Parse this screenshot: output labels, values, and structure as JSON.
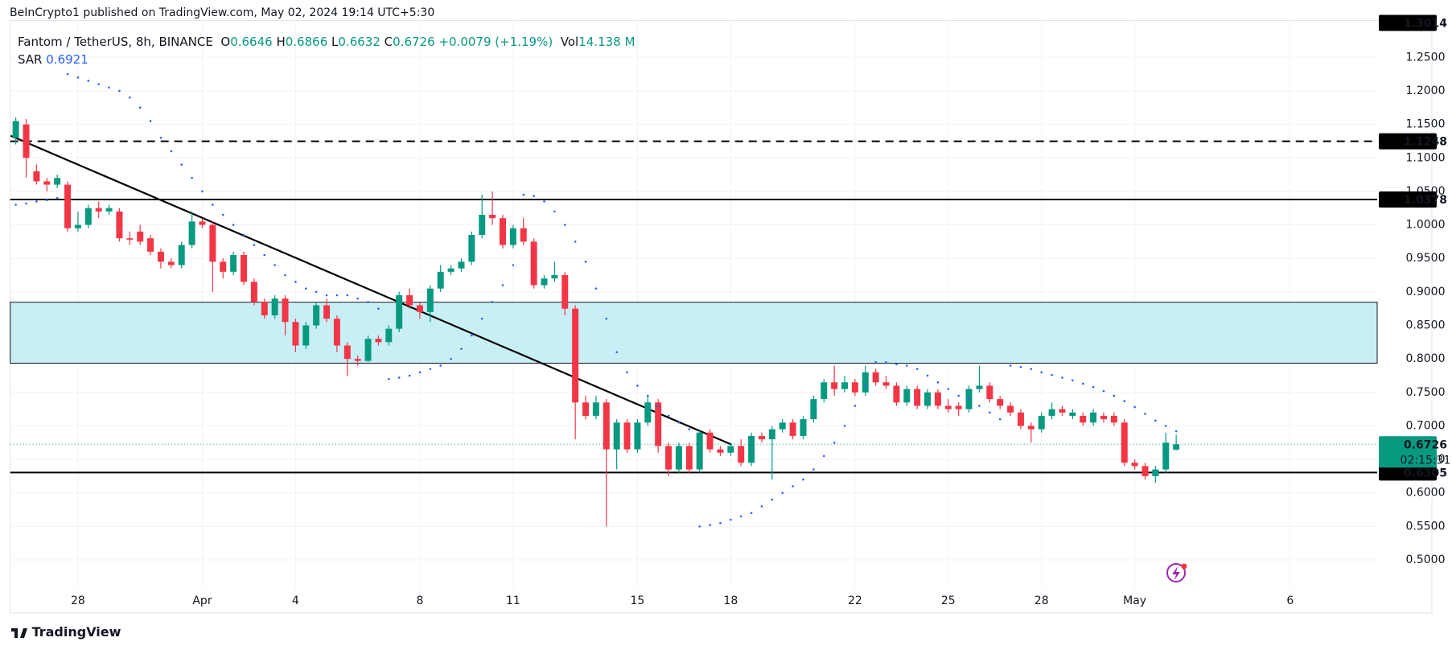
{
  "header": {
    "published": "BeInCrypto1 published on TradingView.com, May 02, 2024 19:14 UTC+5:30"
  },
  "footer": {
    "brand": "TradingView"
  },
  "chart_data": {
    "type": "candlestick",
    "title": "Fantom / TetherUS, 8h, BINANCE",
    "ohlc_legend": [
      {
        "key": "O",
        "value": 0.6646
      },
      {
        "key": "H",
        "value": 0.6866
      },
      {
        "key": "L",
        "value": 0.6632
      },
      {
        "key": "C",
        "value": 0.6726
      }
    ],
    "change": {
      "value": 0.0079,
      "label": "+0.0079"
    },
    "change_pct": {
      "value": 1.19,
      "label": "(+1.19%)"
    },
    "volume": {
      "key": "Vol",
      "value": 14138000,
      "label": "14.138 M"
    },
    "up_color": "#089981",
    "down_color": "#f23645",
    "open": [
      1.13,
      1.15,
      1.08,
      1.065,
      1.06,
      1.06,
      0.995,
      1.0,
      1.025,
      1.02,
      1.02,
      0.98,
      0.99,
      0.98,
      0.96,
      0.945,
      0.94,
      0.97,
      1.005,
      1.0,
      0.945,
      0.93,
      0.955,
      0.915,
      0.885,
      0.865,
      0.89,
      0.855,
      0.82,
      0.85,
      0.88,
      0.86,
      0.82,
      0.8,
      0.797,
      0.83,
      0.825,
      0.845,
      0.895,
      0.88,
      0.87,
      0.905,
      0.93,
      0.935,
      0.945,
      0.985,
      1.015,
      1.01,
      0.97,
      0.995,
      0.975,
      0.91,
      0.92,
      0.925,
      0.875,
      0.735,
      0.715,
      0.735,
      0.665,
      0.705,
      0.665,
      0.705,
      0.735,
      0.67,
      0.635,
      0.67,
      0.635,
      0.69,
      0.665,
      0.66,
      0.67,
      0.645,
      0.685,
      0.68,
      0.695,
      0.705,
      0.685,
      0.71,
      0.74,
      0.765,
      0.755,
      0.765,
      0.75,
      0.78,
      0.765,
      0.76,
      0.735,
      0.755,
      0.73,
      0.75,
      0.73,
      0.73,
      0.725,
      0.755,
      0.76,
      0.74,
      0.73,
      0.72,
      0.7,
      0.695,
      0.715,
      0.725,
      0.715,
      0.715,
      0.705,
      0.715,
      0.715,
      0.705,
      0.645,
      0.64,
      0.625,
      0.635,
      0.6646
    ],
    "high": [
      1.16,
      1.158,
      1.09,
      1.07,
      1.075,
      1.065,
      1.02,
      1.03,
      1.035,
      1.03,
      1.025,
      0.99,
      1.0,
      0.985,
      0.965,
      0.95,
      0.975,
      1.02,
      1.01,
      1.005,
      0.95,
      0.96,
      0.96,
      0.92,
      0.89,
      0.895,
      0.895,
      0.86,
      0.855,
      0.885,
      0.89,
      0.865,
      0.825,
      0.805,
      0.835,
      0.835,
      0.85,
      0.9,
      0.905,
      0.885,
      0.91,
      0.94,
      0.94,
      0.95,
      0.99,
      1.045,
      1.05,
      1.015,
      1.0,
      1.01,
      0.98,
      0.925,
      0.945,
      0.93,
      0.88,
      0.745,
      0.745,
      0.74,
      0.71,
      0.71,
      0.71,
      0.745,
      0.74,
      0.675,
      0.675,
      0.675,
      0.695,
      0.695,
      0.67,
      0.675,
      0.68,
      0.69,
      0.69,
      0.7,
      0.71,
      0.71,
      0.715,
      0.745,
      0.77,
      0.79,
      0.775,
      0.77,
      0.79,
      0.785,
      0.775,
      0.765,
      0.76,
      0.76,
      0.755,
      0.755,
      0.74,
      0.735,
      0.76,
      0.79,
      0.765,
      0.745,
      0.735,
      0.725,
      0.705,
      0.72,
      0.735,
      0.73,
      0.725,
      0.72,
      0.725,
      0.72,
      0.72,
      0.71,
      0.65,
      0.645,
      0.64,
      0.69,
      0.6866
    ],
    "low": [
      1.12,
      1.07,
      1.06,
      1.05,
      1.055,
      0.99,
      0.99,
      0.995,
      1.01,
      1.015,
      0.975,
      0.97,
      0.97,
      0.955,
      0.935,
      0.935,
      0.935,
      0.965,
      0.995,
      0.9,
      0.92,
      0.925,
      0.91,
      0.88,
      0.86,
      0.86,
      0.835,
      0.81,
      0.815,
      0.845,
      0.855,
      0.81,
      0.775,
      0.79,
      0.795,
      0.82,
      0.82,
      0.84,
      0.875,
      0.86,
      0.855,
      0.9,
      0.925,
      0.93,
      0.94,
      0.98,
      1.0,
      0.965,
      0.965,
      0.97,
      0.905,
      0.905,
      0.915,
      0.865,
      0.68,
      0.71,
      0.71,
      0.55,
      0.635,
      0.66,
      0.66,
      0.7,
      0.66,
      0.625,
      0.63,
      0.63,
      0.63,
      0.66,
      0.655,
      0.655,
      0.64,
      0.64,
      0.675,
      0.62,
      0.69,
      0.68,
      0.68,
      0.705,
      0.735,
      0.745,
      0.75,
      0.745,
      0.745,
      0.76,
      0.755,
      0.73,
      0.73,
      0.725,
      0.725,
      0.725,
      0.72,
      0.715,
      0.72,
      0.75,
      0.735,
      0.725,
      0.715,
      0.695,
      0.675,
      0.69,
      0.71,
      0.715,
      0.71,
      0.7,
      0.7,
      0.705,
      0.7,
      0.64,
      0.635,
      0.62,
      0.615,
      0.63,
      0.6632
    ],
    "close": [
      1.155,
      1.1,
      1.065,
      1.06,
      1.07,
      0.995,
      1.0,
      1.025,
      1.02,
      1.025,
      0.98,
      0.978,
      0.975,
      0.96,
      0.945,
      0.94,
      0.97,
      1.005,
      1.0,
      0.945,
      0.93,
      0.955,
      0.915,
      0.885,
      0.865,
      0.89,
      0.855,
      0.82,
      0.85,
      0.88,
      0.86,
      0.82,
      0.8,
      0.797,
      0.83,
      0.825,
      0.845,
      0.895,
      0.88,
      0.87,
      0.905,
      0.93,
      0.935,
      0.945,
      0.985,
      1.015,
      1.01,
      0.97,
      0.995,
      0.975,
      0.91,
      0.92,
      0.925,
      0.875,
      0.735,
      0.715,
      0.735,
      0.665,
      0.705,
      0.665,
      0.705,
      0.735,
      0.67,
      0.635,
      0.67,
      0.635,
      0.69,
      0.665,
      0.66,
      0.67,
      0.645,
      0.685,
      0.68,
      0.695,
      0.705,
      0.685,
      0.71,
      0.74,
      0.765,
      0.755,
      0.765,
      0.75,
      0.78,
      0.765,
      0.76,
      0.735,
      0.755,
      0.73,
      0.75,
      0.73,
      0.725,
      0.725,
      0.755,
      0.76,
      0.74,
      0.73,
      0.72,
      0.7,
      0.695,
      0.715,
      0.725,
      0.72,
      0.72,
      0.705,
      0.72,
      0.71,
      0.705,
      0.645,
      0.64,
      0.625,
      0.635,
      0.675,
      0.6726
    ],
    "sar": {
      "name": "SAR",
      "value": 0.6921,
      "color": "#2962ff",
      "values": [
        1.03,
        1.032,
        1.035,
        1.037,
        1.04,
        1.225,
        1.22,
        1.215,
        1.21,
        1.205,
        1.2,
        1.19,
        1.175,
        1.155,
        1.13,
        1.11,
        1.09,
        1.07,
        1.05,
        1.03,
        1.015,
        1.0,
        0.985,
        0.97,
        0.955,
        0.94,
        0.925,
        0.915,
        0.905,
        0.9,
        0.895,
        0.895,
        0.895,
        0.89,
        0.885,
        0.875,
        0.77,
        0.772,
        0.775,
        0.78,
        0.785,
        0.79,
        0.8,
        0.815,
        0.835,
        0.86,
        0.885,
        0.91,
        0.94,
        1.045,
        1.043,
        1.035,
        1.02,
        1.0,
        0.975,
        0.945,
        0.905,
        0.86,
        0.81,
        0.78,
        0.76,
        0.745,
        0.73,
        0.715,
        0.705,
        0.695,
        0.55,
        0.552,
        0.555,
        0.56,
        0.565,
        0.57,
        0.58,
        0.59,
        0.6,
        0.61,
        0.62,
        0.635,
        0.655,
        0.675,
        0.7,
        0.73,
        0.76,
        0.795,
        0.795,
        0.792,
        0.79,
        0.785,
        0.775,
        0.765,
        0.755,
        0.745,
        0.74,
        0.73,
        0.72,
        0.71,
        0.79,
        0.788,
        0.785,
        0.78,
        0.776,
        0.772,
        0.768,
        0.763,
        0.758,
        0.752,
        0.745,
        0.737,
        0.728,
        0.718,
        0.708,
        0.7,
        0.6921
      ]
    },
    "xlim": [
      -0.54,
      131.4
    ],
    "xticks": [
      {
        "value": 6,
        "label": "28"
      },
      {
        "value": 18,
        "label": "Apr"
      },
      {
        "value": 27,
        "label": "4"
      },
      {
        "value": 39,
        "label": "8"
      },
      {
        "value": 48,
        "label": "11"
      },
      {
        "value": 60,
        "label": "15"
      },
      {
        "value": 69,
        "label": "18"
      },
      {
        "value": 81,
        "label": "22"
      },
      {
        "value": 90,
        "label": "25"
      },
      {
        "value": 99,
        "label": "28"
      },
      {
        "value": 108,
        "label": "May"
      },
      {
        "value": 123,
        "label": "6"
      }
    ],
    "ylim": [
      0.458,
      1.305
    ],
    "yticks": [
      {
        "value": 0.5,
        "label": "0.5000"
      },
      {
        "value": 0.55,
        "label": "0.5500"
      },
      {
        "value": 0.6,
        "label": "0.6000"
      },
      {
        "value": 0.65,
        "label": "0.6500"
      },
      {
        "value": 0.7,
        "label": "0.7000"
      },
      {
        "value": 0.75,
        "label": "0.7500"
      },
      {
        "value": 0.8,
        "label": "0.8000"
      },
      {
        "value": 0.85,
        "label": "0.8500"
      },
      {
        "value": 0.9,
        "label": "0.9000"
      },
      {
        "value": 0.95,
        "label": "0.9500"
      },
      {
        "value": 1.0,
        "label": "1.0000"
      },
      {
        "value": 1.05,
        "label": "1.0500"
      },
      {
        "value": 1.1,
        "label": "1.1000"
      },
      {
        "value": 1.15,
        "label": "1.1500"
      },
      {
        "value": 1.2,
        "label": "1.2000"
      },
      {
        "value": 1.25,
        "label": "1.2500"
      }
    ],
    "grid": true,
    "levels": [
      {
        "value": 1.1248,
        "style": "dashed"
      },
      {
        "value": 1.0378,
        "style": "solid"
      },
      {
        "value": 0.6305,
        "style": "solid"
      }
    ],
    "zone": {
      "range": [
        0.7936,
        0.8846
      ],
      "color": "#c8eff5"
    },
    "trendline": {
      "x": [
        -0.5,
        69.1
      ],
      "y": [
        1.133,
        0.672
      ]
    },
    "high_marker": 1.3014,
    "last_price": 0.6726,
    "countdown": "02:15:31"
  }
}
